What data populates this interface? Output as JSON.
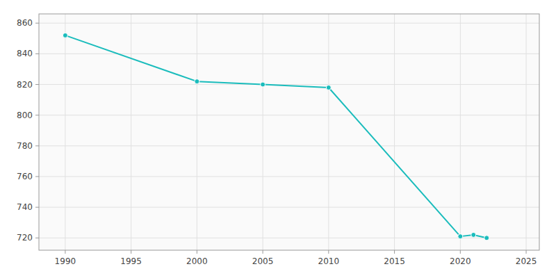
{
  "chart_data": {
    "type": "line",
    "x": [
      1990,
      2000,
      2005,
      2010,
      2020,
      2021,
      2022
    ],
    "values": [
      852,
      822,
      820,
      818,
      721,
      722,
      720
    ],
    "color": "#1abcbc",
    "marker": "circle",
    "xlim": [
      1988,
      2026
    ],
    "ylim": [
      712,
      866
    ],
    "xticks": [
      1990,
      1995,
      2000,
      2005,
      2010,
      2015,
      2020,
      2025
    ],
    "yticks": [
      720,
      740,
      760,
      780,
      800,
      820,
      840,
      860
    ],
    "grid": true
  }
}
